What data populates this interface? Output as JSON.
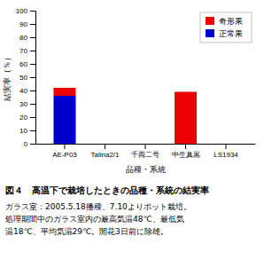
{
  "chart_data": {
    "type": "bar",
    "stacked": true,
    "title": "図４　高温下で栽培したときの品種・系統の結実率",
    "annotations": [
      "ガラス室：2005.5.18播種、7.10よりポット栽培。",
      "処理期間中のガラス室内の最高気温48℃、最低気",
      "温18℃、平均気温29℃。開花3日前に除雄。"
    ],
    "xlabel": "品種・系統",
    "ylabel": "結実率（％）",
    "categories": [
      "AE-P03",
      "Talina2/1",
      "千両二号",
      "中生真黒",
      "LS1934"
    ],
    "series": [
      {
        "name": "正常果",
        "color": "#0000cc",
        "values": [
          36,
          0,
          0,
          0,
          0
        ]
      },
      {
        "name": "奇形果",
        "color": "#ee0000",
        "values": [
          6,
          0,
          0,
          39,
          0
        ]
      }
    ],
    "ylim": [
      0,
      100
    ],
    "yticks": [
      0,
      10,
      20,
      30,
      40,
      50,
      60,
      70,
      80,
      90,
      100
    ],
    "grid": false,
    "legend": "upper right"
  }
}
